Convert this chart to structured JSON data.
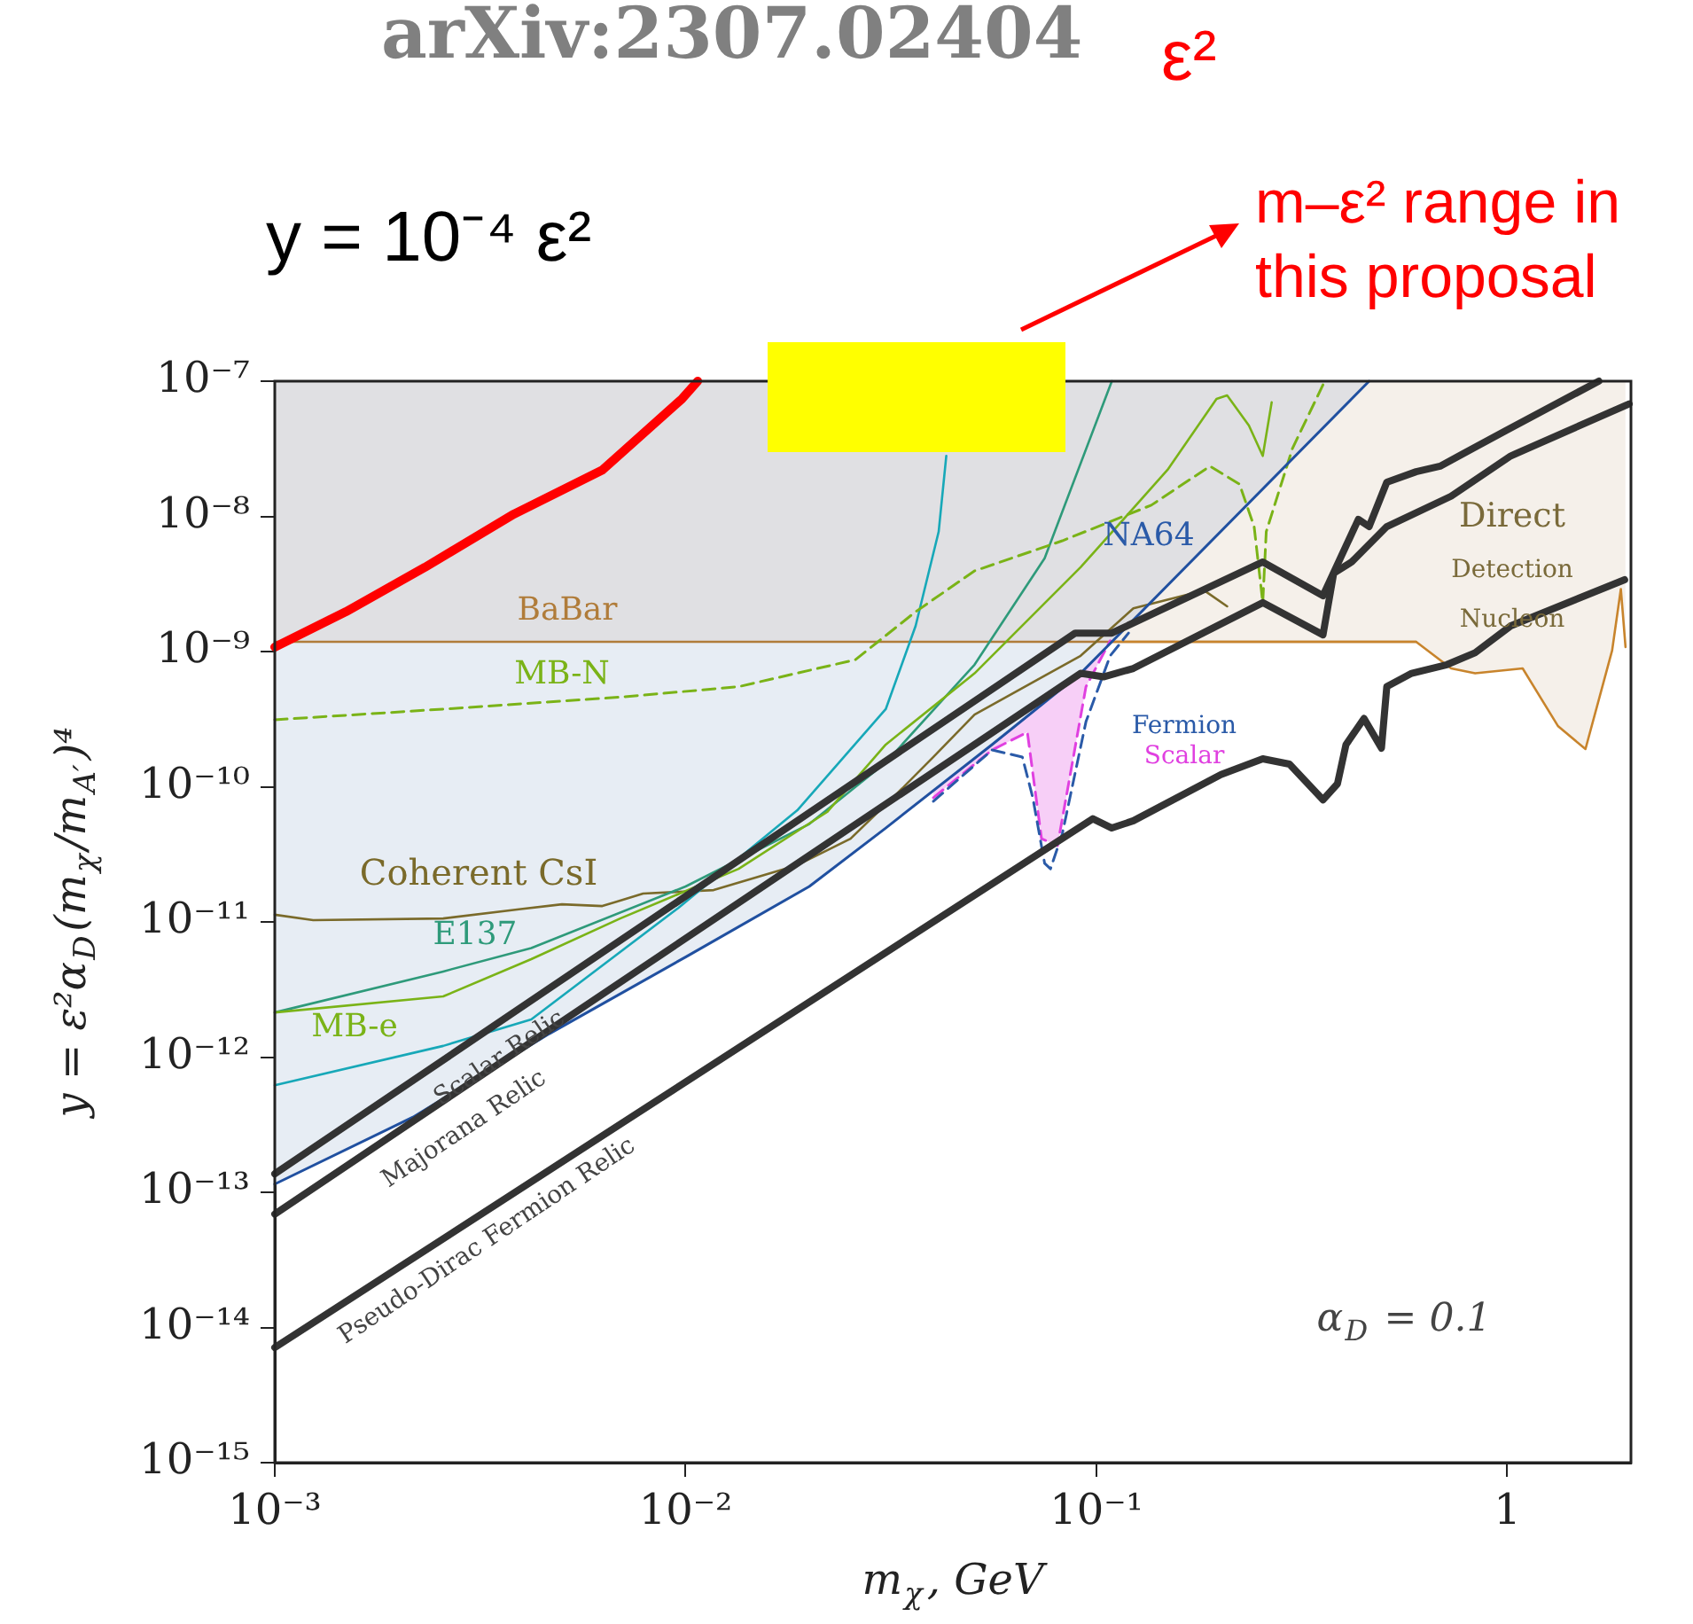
{
  "chart_data": {
    "type": "line",
    "log": "xy",
    "xlim": [
      0.001,
      2
    ],
    "ylim": [
      1e-15,
      1e-07
    ],
    "xticks": [
      {
        "value": 0.001,
        "label": "10⁻³"
      },
      {
        "value": 0.01,
        "label": "10⁻²"
      },
      {
        "value": 0.1,
        "label": "10⁻¹"
      },
      1
    ],
    "yticks": [
      {
        "value": 1e-15,
        "label": "10⁻¹⁵"
      },
      {
        "value": 1e-14,
        "label": "10⁻¹⁴"
      },
      {
        "value": 1e-13,
        "label": "10⁻¹³"
      },
      {
        "value": 1e-12,
        "label": "10⁻¹²"
      },
      {
        "value": 1e-11,
        "label": "10⁻¹¹"
      },
      {
        "value": 1e-10,
        "label": "10⁻¹⁰"
      },
      {
        "value": 1e-09,
        "label": "10⁻⁹"
      },
      {
        "value": 1e-08,
        "label": "10⁻⁸"
      },
      {
        "value": 1e-07,
        "label": "10⁻⁷"
      }
    ],
    "xlabel": "m$_{χ}$, GeV",
    "ylabel": "y = ε²α$_{D}$(m$_{χ}$/m$_{A′}$)⁴",
    "marker": "none",
    "series": [
      {
        "color": "#b07c3a",
        "x": [
          0.001,
          0.109,
          0.461,
          0.6
        ],
        "values": [
          1.18e-09,
          1.18e-09,
          1.18e-09,
          1.18e-09
        ],
        "lower": [
          1.18e-09,
          1.18e-09,
          1e-07,
          1e-07
        ],
        "upper": [
          1e-07,
          1e-07,
          1e-07,
          1e-07
        ]
      },
      {
        "color": "#c8842c",
        "x": [
          0.109,
          0.461,
          0.6,
          0.73,
          0.835,
          1.09,
          1.33,
          1.55,
          1.8,
          1.89,
          1.94
        ],
        "values": [
          1.18e-09,
          1.18e-09,
          1.18e-09,
          7.5e-10,
          6.9e-10,
          7.5e-10,
          2.8e-10,
          1.9e-10,
          1.02e-09,
          2.9e-09,
          1.08e-09
        ],
        "lower": [
          1.18e-09,
          1.18e-09,
          1.18e-09,
          7.5e-10,
          6.9e-10,
          7.5e-10,
          2.8e-10,
          1.9e-10,
          1.02e-09,
          2.9e-09,
          1.08e-09
        ],
        "upper": [
          1.18e-09,
          1e-07,
          1e-07,
          1e-07,
          1e-07,
          1e-07,
          1e-07,
          1e-07,
          1e-07,
          1e-07,
          1e-07
        ]
      },
      {
        "color": "#7a6a2a",
        "x": [
          0.001,
          0.00124,
          0.00257,
          0.00393,
          0.005,
          0.00627,
          0.00788,
          0.0117,
          0.0187,
          0.0252,
          0.0329,
          0.0401,
          0.0505,
          0.0915,
          0.123,
          0.183,
          0.208
        ],
        "values": [
          1.13e-11,
          1.03e-11,
          1.06e-11,
          1.24e-11,
          1.35e-11,
          1.31e-11,
          1.62e-11,
          1.72e-11,
          2.63e-11,
          4.13e-11,
          9.06e-11,
          1.66e-10,
          3.42e-10,
          9.3e-10,
          2.09e-09,
          2.83e-09,
          2.16e-09
        ]
      },
      {
        "color": "#2e9a7a",
        "x": [
          0.001,
          0.00257,
          0.00421,
          0.01,
          0.02,
          0.0307,
          0.0505,
          0.0748,
          0.109
        ],
        "values": [
          2.14e-12,
          4.3e-12,
          6.4e-12,
          1.83e-11,
          5.3e-11,
          1.51e-10,
          8e-10,
          4.9e-09,
          1e-07
        ]
      },
      {
        "color": "#7ab317",
        "x": [
          0.001,
          0.00257,
          0.00421,
          0.00693,
          0.01346,
          0.0221,
          0.0307,
          0.0505,
          0.0915,
          0.149,
          0.196,
          0.208,
          0.235,
          0.254,
          0.267
        ],
        "values": [
          2.14e-12,
          2.81e-12,
          5.3e-12,
          1.06e-11,
          2.47e-11,
          6.5e-11,
          2.05e-10,
          6.9e-10,
          4.2e-09,
          2.21e-08,
          7.4e-08,
          7.85e-08,
          4.7e-08,
          2.8e-08,
          6.97e-08
        ]
      },
      {
        "color": "#17a8b8",
        "x": [
          0.001,
          0.00257,
          0.00421,
          0.0096,
          0.0187,
          0.0307,
          0.0363,
          0.0413,
          0.0431
        ],
        "values": [
          6.2e-13,
          1.21e-12,
          1.9e-12,
          1.27e-11,
          6.7e-11,
          3.75e-10,
          1.55e-09,
          7.7e-09,
          2.8e-08
        ]
      },
      {
        "color": "#7ab317",
        "line_style": "dashed",
        "x": [
          0.001,
          0.00257,
          0.00693,
          0.01346,
          0.0259,
          0.0363,
          0.0505,
          0.0826,
          0.136,
          0.189,
          0.223,
          0.242,
          0.254,
          0.259,
          0.3,
          0.356
        ],
        "values": [
          3.13e-10,
          3.75e-10,
          4.6e-10,
          5.5e-10,
          8.7e-10,
          1.97e-09,
          3.95e-09,
          6.6e-09,
          1.21e-08,
          2.35e-08,
          1.73e-08,
          8.4e-09,
          2.3e-09,
          7.7e-09,
          3.18e-08,
          9.4e-08
        ]
      },
      {
        "color": "#e040e0",
        "line_style": "dashed",
        "x": [
          0.0401,
          0.0557,
          0.0679,
          0.0735,
          0.0804,
          0.0943,
          0.108
        ],
        "values": [
          8.3e-11,
          1.87e-10,
          2.53e-10,
          4.13e-11,
          3.67e-11,
          5.5e-10,
          1.2e-09
        ],
        "lower": [
          8.3e-11,
          1.87e-10,
          2.53e-10,
          4.13e-11,
          3.67e-11,
          5.5e-10,
          1.2e-09
        ],
        "upper": [
          9.1e-11,
          2.05e-10,
          3.3e-10,
          4e-10,
          4.9e-10,
          7.5e-10,
          1.2e-09
        ]
      },
      {
        "color": "#2a5aa8",
        "line_style": "dashed",
        "x": [
          0.0401,
          0.0557,
          0.066,
          0.07,
          0.0748,
          0.0773,
          0.0826,
          0.0943,
          0.108,
          0.1197
        ],
        "values": [
          7.8e-11,
          1.87e-10,
          1.66e-10,
          8.3e-11,
          2.71e-11,
          2.47e-11,
          4.5e-11,
          3.03e-10,
          9.3e-10,
          1.37e-09
        ]
      },
      {
        "color": "#2050a0",
        "x": [
          0.001,
          0.00217,
          0.00466,
          0.01,
          0.02,
          0.0307,
          0.0557,
          0.0915,
          0.109,
          0.461
        ],
        "values": [
          1.15e-13,
          3.6e-13,
          1.49e-12,
          5.5e-12,
          1.83e-11,
          4.95e-11,
          2.05e-10,
          6.9e-10,
          1.18e-09,
          1e-07
        ],
        "lower": [
          1.15e-13,
          3.6e-13,
          1.49e-12,
          5.5e-12,
          1.83e-11,
          4.95e-11,
          2.05e-10,
          6.9e-10,
          1.18e-09,
          1e-07
        ],
        "upper": [
          1.18e-09,
          1.18e-09,
          1.18e-09,
          1.18e-09,
          1.18e-09,
          1.18e-09,
          1.18e-09,
          1.18e-09,
          1.18e-09,
          1e-07
        ]
      },
      {
        "color": "#333333",
        "x": [
          0.001,
          0.0888,
          0.109,
          0.254,
          0.356,
          0.434,
          0.461,
          0.509,
          0.6,
          0.686,
          0.99,
          1.67
        ],
        "values": [
          1.37e-13,
          1.37e-09,
          1.37e-09,
          4.6e-09,
          2.59e-09,
          9.5e-09,
          8.4e-09,
          1.79e-08,
          2.14e-08,
          2.35e-08,
          4.3e-08,
          1e-07
        ]
      },
      {
        "color": "#333333",
        "x": [
          0.001,
          0.0915,
          0.104,
          0.123,
          0.254,
          0.356,
          0.378,
          0.418,
          0.509,
          0.73,
          1.02,
          1.98
        ],
        "values": [
          6.9e-14,
          6.9e-10,
          6.5e-10,
          7.5e-10,
          2.3e-09,
          1.33e-09,
          3.8e-09,
          4.6e-09,
          8.4e-09,
          1.41e-08,
          2.8e-08,
          6.8e-08
        ]
      },
      {
        "color": "#333333",
        "x": [
          0.001,
          0.098,
          0.109,
          0.123,
          0.201,
          0.254,
          0.295,
          0.356,
          0.386,
          0.405,
          0.448,
          0.494,
          0.509,
          0.585,
          0.713,
          0.835,
          1.02,
          1.93
        ],
        "values": [
          7.1e-15,
          5.8e-11,
          4.95e-11,
          5.6e-11,
          1.23e-10,
          1.61e-10,
          1.47e-10,
          8e-11,
          1.05e-10,
          2.05e-10,
          3.2e-10,
          1.93e-10,
          5.5e-10,
          6.9e-10,
          8e-10,
          9.8e-10,
          1.55e-09,
          3.4e-09
        ]
      },
      {
        "color": "#ff0000",
        "x": [
          0.001,
          0.00149,
          0.00232,
          0.00382,
          0.00627,
          0.0098,
          0.0107
        ],
        "values": [
          1.08e-09,
          1.97e-09,
          4.2e-09,
          1.04e-08,
          2.2e-08,
          7.4e-08,
          1e-07
        ]
      }
    ],
    "annotations": [
      "arXiv:2307.02404",
      "y = 10⁻⁴ ε²",
      "m–ε² range in this proposal",
      "ε²",
      "BaBar",
      "MB-N",
      "Coherent CsI",
      "E137",
      "MB-e",
      "NA64",
      "Fermion",
      "Scalar",
      "Direct",
      "Detection",
      "Nucleon",
      "Scalar Relic",
      "Majorana Relic",
      "Pseudo-Dirac Fermion Relic",
      "α$_{D}$ = 0.1"
    ]
  }
}
